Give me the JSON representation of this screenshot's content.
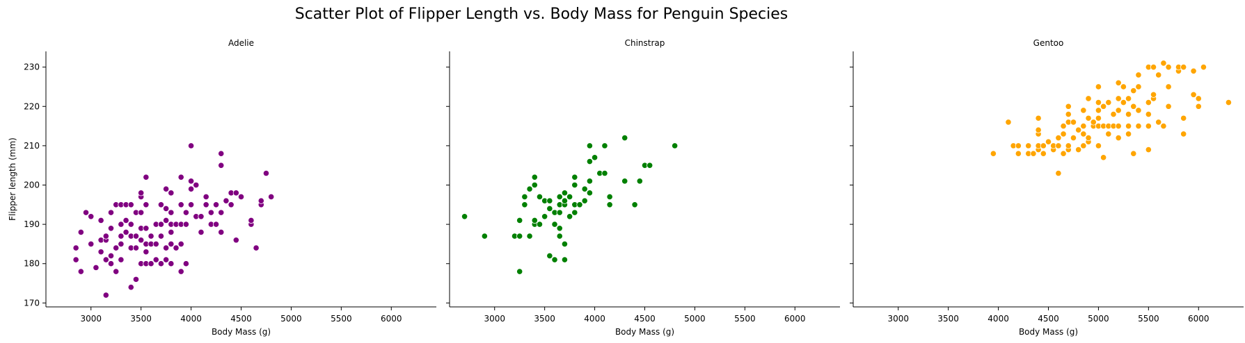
{
  "chart_data": {
    "type": "scatter",
    "title": "Scatter Plot of Flipper Length vs. Body Mass for Penguin Species",
    "xlabel": "Body Mass (g)",
    "ylabel": "Flipper length (mm)",
    "xlim": [
      2550,
      6450
    ],
    "ylim": [
      169,
      234
    ],
    "xticks": [
      3000,
      3500,
      4000,
      4500,
      5000,
      5500,
      6000
    ],
    "yticks": [
      170,
      180,
      190,
      200,
      210,
      220,
      230
    ],
    "grid": false,
    "facets": [
      {
        "name": "Adelie",
        "color": "#800080",
        "points": [
          [
            3150,
            172
          ],
          [
            3400,
            174
          ],
          [
            3450,
            176
          ],
          [
            2850,
            181
          ],
          [
            2850,
            184
          ],
          [
            2900,
            178
          ],
          [
            2900,
            188
          ],
          [
            2950,
            193
          ],
          [
            3050,
            179
          ],
          [
            3000,
            185
          ],
          [
            3000,
            192
          ],
          [
            3100,
            183
          ],
          [
            3100,
            186
          ],
          [
            3150,
            186
          ],
          [
            3100,
            191
          ],
          [
            3200,
            180
          ],
          [
            3200,
            182
          ],
          [
            3150,
            181
          ],
          [
            3150,
            187
          ],
          [
            3200,
            189
          ],
          [
            3200,
            193
          ],
          [
            3250,
            178
          ],
          [
            3250,
            184
          ],
          [
            3250,
            195
          ],
          [
            3300,
            181
          ],
          [
            3300,
            185
          ],
          [
            3300,
            187
          ],
          [
            3350,
            188
          ],
          [
            3300,
            190
          ],
          [
            3350,
            191
          ],
          [
            3300,
            195
          ],
          [
            3350,
            195
          ],
          [
            3400,
            184
          ],
          [
            3400,
            187
          ],
          [
            3450,
            184
          ],
          [
            3450,
            187
          ],
          [
            3400,
            190
          ],
          [
            3450,
            193
          ],
          [
            3400,
            195
          ],
          [
            3500,
            180
          ],
          [
            3500,
            186
          ],
          [
            3500,
            189
          ],
          [
            3500,
            193
          ],
          [
            3500,
            197
          ],
          [
            3500,
            198
          ],
          [
            3550,
            180
          ],
          [
            3550,
            183
          ],
          [
            3550,
            185
          ],
          [
            3550,
            189
          ],
          [
            3550,
            195
          ],
          [
            3550,
            202
          ],
          [
            3600,
            180
          ],
          [
            3600,
            185
          ],
          [
            3600,
            187
          ],
          [
            3650,
            181
          ],
          [
            3650,
            185
          ],
          [
            3650,
            190
          ],
          [
            3700,
            180
          ],
          [
            3700,
            187
          ],
          [
            3700,
            190
          ],
          [
            3700,
            195
          ],
          [
            3750,
            181
          ],
          [
            3750,
            184
          ],
          [
            3750,
            191
          ],
          [
            3750,
            194
          ],
          [
            3750,
            199
          ],
          [
            3800,
            180
          ],
          [
            3800,
            185
          ],
          [
            3800,
            188
          ],
          [
            3800,
            190
          ],
          [
            3800,
            193
          ],
          [
            3800,
            198
          ],
          [
            3850,
            184
          ],
          [
            3850,
            190
          ],
          [
            3900,
            178
          ],
          [
            3900,
            185
          ],
          [
            3900,
            190
          ],
          [
            3900,
            195
          ],
          [
            3900,
            202
          ],
          [
            3950,
            180
          ],
          [
            3950,
            190
          ],
          [
            3950,
            193
          ],
          [
            4000,
            195
          ],
          [
            4000,
            199
          ],
          [
            4000,
            201
          ],
          [
            4000,
            210
          ],
          [
            4050,
            200
          ],
          [
            4050,
            192
          ],
          [
            4100,
            188
          ],
          [
            4100,
            192
          ],
          [
            4150,
            195
          ],
          [
            4150,
            197
          ],
          [
            4200,
            190
          ],
          [
            4200,
            193
          ],
          [
            4250,
            190
          ],
          [
            4250,
            195
          ],
          [
            4300,
            188
          ],
          [
            4300,
            193
          ],
          [
            4300,
            205
          ],
          [
            4300,
            208
          ],
          [
            4350,
            196
          ],
          [
            4400,
            195
          ],
          [
            4400,
            198
          ],
          [
            4450,
            186
          ],
          [
            4450,
            198
          ],
          [
            4500,
            197
          ],
          [
            4600,
            190
          ],
          [
            4600,
            191
          ],
          [
            4650,
            184
          ],
          [
            4700,
            195
          ],
          [
            4700,
            196
          ],
          [
            4750,
            203
          ],
          [
            4800,
            197
          ]
        ]
      },
      {
        "name": "Chinstrap",
        "color": "#008000",
        "points": [
          [
            2700,
            192
          ],
          [
            2900,
            187
          ],
          [
            3200,
            187
          ],
          [
            3250,
            178
          ],
          [
            3250,
            187
          ],
          [
            3250,
            191
          ],
          [
            3300,
            195
          ],
          [
            3300,
            197
          ],
          [
            3350,
            187
          ],
          [
            3350,
            199
          ],
          [
            3400,
            190
          ],
          [
            3400,
            191
          ],
          [
            3400,
            200
          ],
          [
            3400,
            202
          ],
          [
            3450,
            190
          ],
          [
            3450,
            197
          ],
          [
            3500,
            192
          ],
          [
            3500,
            196
          ],
          [
            3550,
            182
          ],
          [
            3550,
            194
          ],
          [
            3550,
            196
          ],
          [
            3600,
            181
          ],
          [
            3600,
            190
          ],
          [
            3600,
            193
          ],
          [
            3650,
            187
          ],
          [
            3650,
            189
          ],
          [
            3650,
            193
          ],
          [
            3650,
            195
          ],
          [
            3650,
            197
          ],
          [
            3700,
            181
          ],
          [
            3700,
            185
          ],
          [
            3700,
            195
          ],
          [
            3700,
            196
          ],
          [
            3700,
            198
          ],
          [
            3750,
            192
          ],
          [
            3750,
            197
          ],
          [
            3800,
            193
          ],
          [
            3800,
            195
          ],
          [
            3800,
            200
          ],
          [
            3800,
            202
          ],
          [
            3850,
            195
          ],
          [
            3900,
            196
          ],
          [
            3900,
            199
          ],
          [
            3950,
            198
          ],
          [
            3950,
            201
          ],
          [
            3950,
            206
          ],
          [
            3950,
            210
          ],
          [
            4000,
            207
          ],
          [
            4050,
            203
          ],
          [
            4100,
            203
          ],
          [
            4100,
            210
          ],
          [
            4150,
            195
          ],
          [
            4150,
            197
          ],
          [
            4300,
            201
          ],
          [
            4300,
            212
          ],
          [
            4400,
            195
          ],
          [
            4450,
            201
          ],
          [
            4500,
            205
          ],
          [
            4550,
            205
          ],
          [
            4800,
            210
          ]
        ]
      },
      {
        "name": "Gentoo",
        "color": "#FFA500",
        "points": [
          [
            3950,
            208
          ],
          [
            4100,
            216
          ],
          [
            4150,
            210
          ],
          [
            4200,
            208
          ],
          [
            4200,
            210
          ],
          [
            4300,
            208
          ],
          [
            4300,
            210
          ],
          [
            4350,
            208
          ],
          [
            4400,
            209
          ],
          [
            4400,
            210
          ],
          [
            4400,
            213
          ],
          [
            4400,
            214
          ],
          [
            4400,
            217
          ],
          [
            4450,
            208
          ],
          [
            4450,
            210
          ],
          [
            4500,
            211
          ],
          [
            4550,
            209
          ],
          [
            4550,
            210
          ],
          [
            4600,
            203
          ],
          [
            4600,
            210
          ],
          [
            4600,
            212
          ],
          [
            4650,
            208
          ],
          [
            4650,
            213
          ],
          [
            4650,
            215
          ],
          [
            4700,
            209
          ],
          [
            4700,
            210
          ],
          [
            4700,
            216
          ],
          [
            4700,
            218
          ],
          [
            4700,
            220
          ],
          [
            4750,
            212
          ],
          [
            4750,
            216
          ],
          [
            4800,
            209
          ],
          [
            4800,
            214
          ],
          [
            4850,
            210
          ],
          [
            4850,
            213
          ],
          [
            4850,
            215
          ],
          [
            4850,
            219
          ],
          [
            4900,
            211
          ],
          [
            4900,
            212
          ],
          [
            4900,
            217
          ],
          [
            4900,
            222
          ],
          [
            4950,
            215
          ],
          [
            4950,
            216
          ],
          [
            5000,
            210
          ],
          [
            5000,
            215
          ],
          [
            5000,
            217
          ],
          [
            5000,
            219
          ],
          [
            5000,
            221
          ],
          [
            5000,
            225
          ],
          [
            5050,
            207
          ],
          [
            5050,
            215
          ],
          [
            5050,
            220
          ],
          [
            5100,
            213
          ],
          [
            5100,
            215
          ],
          [
            5100,
            221
          ],
          [
            5150,
            215
          ],
          [
            5150,
            218
          ],
          [
            5200,
            212
          ],
          [
            5200,
            215
          ],
          [
            5200,
            219
          ],
          [
            5200,
            222
          ],
          [
            5200,
            226
          ],
          [
            5250,
            221
          ],
          [
            5250,
            225
          ],
          [
            5300,
            213
          ],
          [
            5300,
            215
          ],
          [
            5300,
            218
          ],
          [
            5300,
            222
          ],
          [
            5350,
            208
          ],
          [
            5350,
            220
          ],
          [
            5350,
            224
          ],
          [
            5400,
            215
          ],
          [
            5400,
            219
          ],
          [
            5400,
            225
          ],
          [
            5400,
            228
          ],
          [
            5500,
            209
          ],
          [
            5500,
            215
          ],
          [
            5500,
            218
          ],
          [
            5500,
            221
          ],
          [
            5500,
            230
          ],
          [
            5550,
            222
          ],
          [
            5550,
            223
          ],
          [
            5550,
            230
          ],
          [
            5600,
            216
          ],
          [
            5600,
            228
          ],
          [
            5650,
            215
          ],
          [
            5650,
            231
          ],
          [
            5700,
            220
          ],
          [
            5700,
            225
          ],
          [
            5700,
            230
          ],
          [
            5800,
            229
          ],
          [
            5800,
            230
          ],
          [
            5850,
            213
          ],
          [
            5850,
            217
          ],
          [
            5850,
            230
          ],
          [
            5950,
            223
          ],
          [
            5950,
            229
          ],
          [
            6000,
            220
          ],
          [
            6000,
            222
          ],
          [
            6050,
            230
          ],
          [
            6300,
            221
          ]
        ]
      }
    ]
  }
}
